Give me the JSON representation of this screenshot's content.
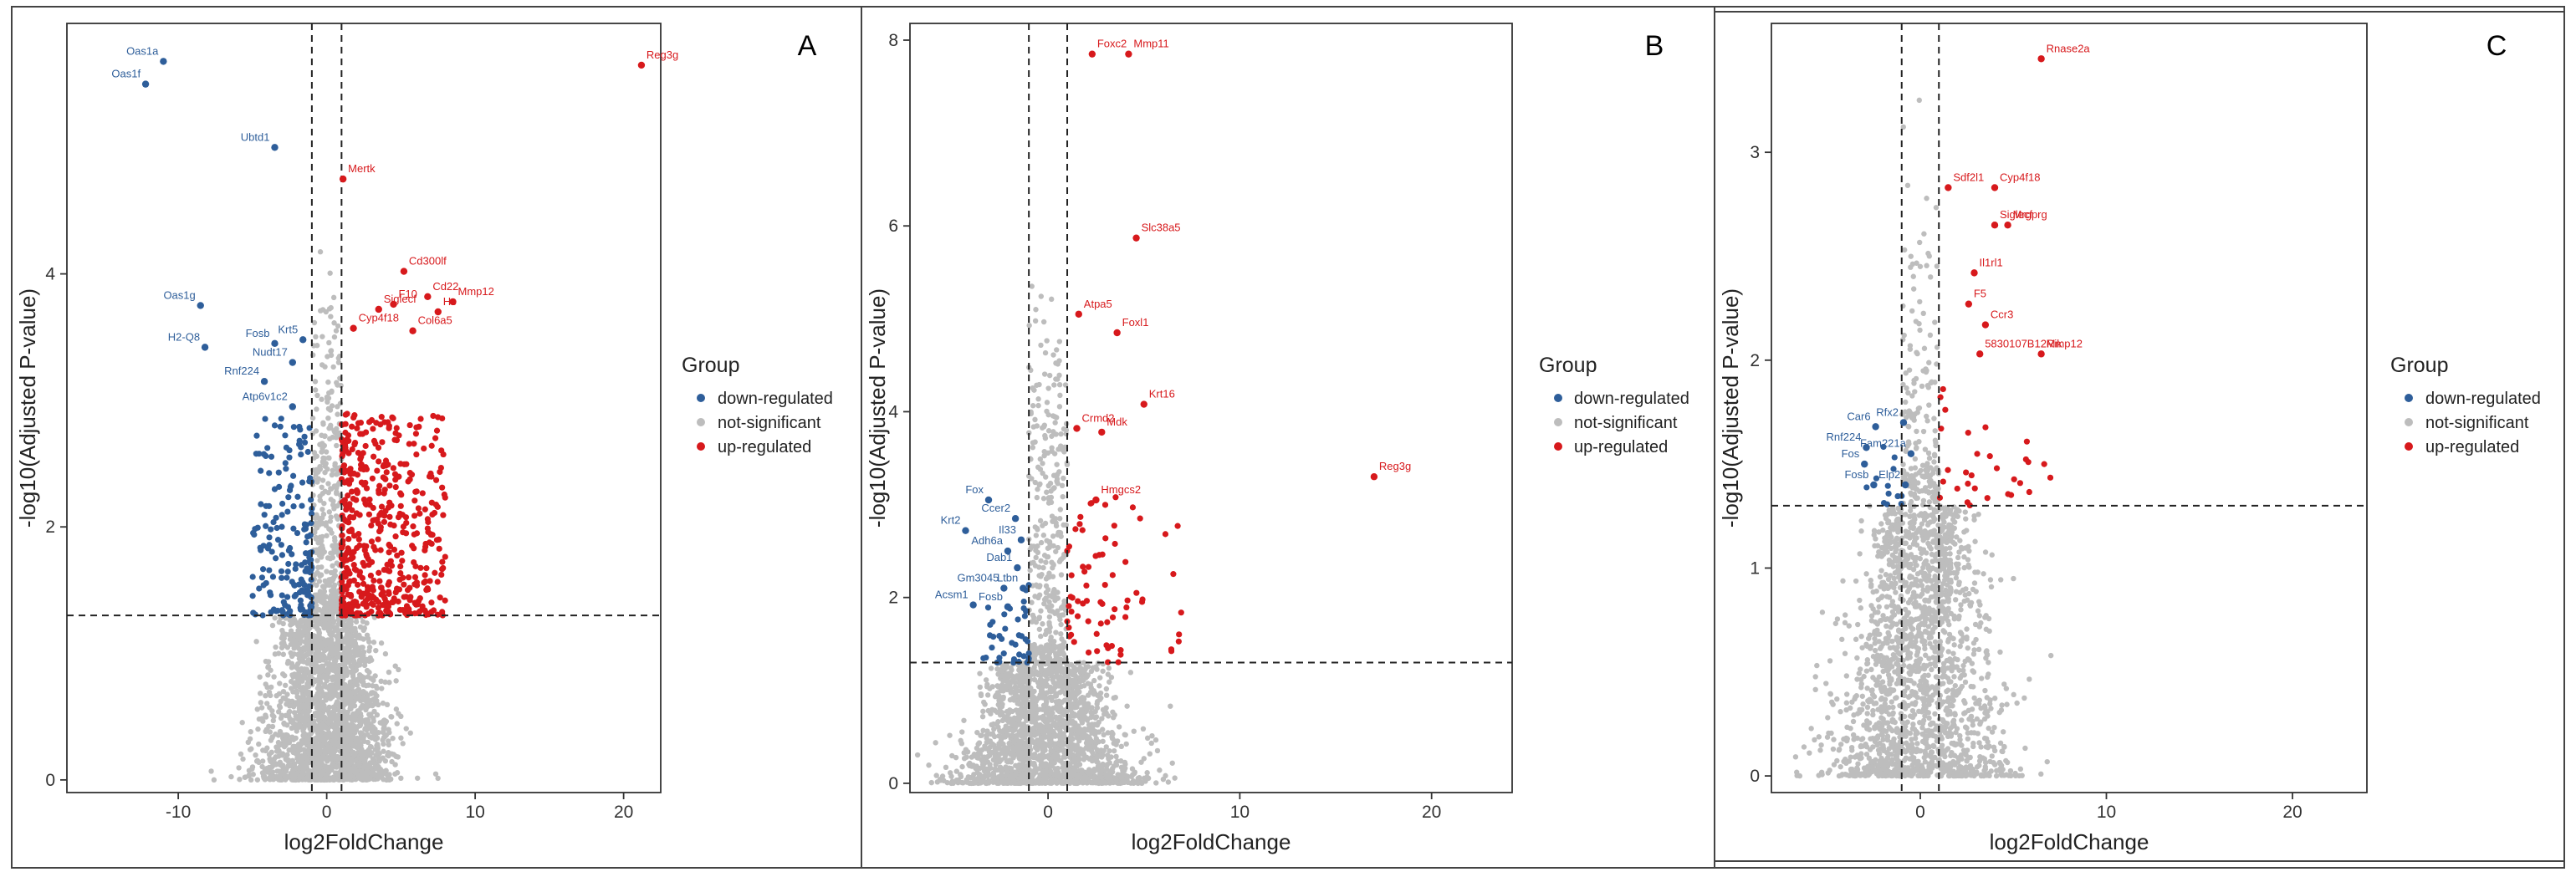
{
  "chart_data": [
    {
      "type": "scatter",
      "panel_label": "A",
      "xlabel": "log2FoldChange",
      "ylabel": "-log10(Adjusted P-value)",
      "xlim": [
        -17.5,
        22.5
      ],
      "ylim": [
        -0.1,
        5.98
      ],
      "xticks": [
        -10,
        0,
        10,
        20
      ],
      "yticks": [
        0,
        2,
        4
      ],
      "fc_cutoff": 1,
      "p_cutoff": 1.3,
      "legend": {
        "title": "Group",
        "entries": [
          "down-regulated",
          "not-significant",
          "up-regulated"
        ],
        "position": "right"
      },
      "labeled_points": [
        {
          "label": "Oas1a",
          "x": -11,
          "y": 5.68,
          "group": "down"
        },
        {
          "label": "Oas1f",
          "x": -12.2,
          "y": 5.5,
          "group": "down"
        },
        {
          "label": "Ubtd1",
          "x": -3.5,
          "y": 5.0,
          "group": "down"
        },
        {
          "label": "Oas1g",
          "x": -8.5,
          "y": 3.75,
          "group": "down"
        },
        {
          "label": "H2-Q8",
          "x": -8.2,
          "y": 3.42,
          "group": "down"
        },
        {
          "label": "Fosb",
          "x": -3.5,
          "y": 3.45,
          "group": "down"
        },
        {
          "label": "Krt5",
          "x": -1.6,
          "y": 3.48,
          "group": "down"
        },
        {
          "label": "Nudt17",
          "x": -2.3,
          "y": 3.3,
          "group": "down"
        },
        {
          "label": "Rnf224",
          "x": -4.2,
          "y": 3.15,
          "group": "down"
        },
        {
          "label": "Atp6v1c2",
          "x": -2.3,
          "y": 2.95,
          "group": "down"
        },
        {
          "label": "Reg3g",
          "x": 21.2,
          "y": 5.65,
          "group": "up"
        },
        {
          "label": "Mertk",
          "x": 1.1,
          "y": 4.75,
          "group": "up"
        },
        {
          "label": "Cd300lf",
          "x": 5.2,
          "y": 4.02,
          "group": "up"
        },
        {
          "label": "Cd22",
          "x": 6.8,
          "y": 3.82,
          "group": "up"
        },
        {
          "label": "F10",
          "x": 4.5,
          "y": 3.76,
          "group": "up"
        },
        {
          "label": "Mmp12",
          "x": 8.5,
          "y": 3.78,
          "group": "up"
        },
        {
          "label": "Siglecf",
          "x": 3.5,
          "y": 3.72,
          "group": "up"
        },
        {
          "label": "Hc",
          "x": 7.5,
          "y": 3.7,
          "group": "up"
        },
        {
          "label": "Cyp4f18",
          "x": 1.8,
          "y": 3.57,
          "group": "up"
        },
        {
          "label": "Col6a5",
          "x": 5.8,
          "y": 3.55,
          "group": "up"
        }
      ]
    },
    {
      "type": "scatter",
      "panel_label": "B",
      "xlabel": "log2FoldChange",
      "ylabel": "-log10(Adjusted P-value)",
      "xlim": [
        -7.2,
        24.2
      ],
      "ylim": [
        -0.1,
        8.18
      ],
      "xticks": [
        0,
        10,
        20
      ],
      "yticks": [
        0,
        2,
        4,
        6,
        8
      ],
      "fc_cutoff": 1,
      "p_cutoff": 1.3,
      "legend": {
        "title": "Group",
        "entries": [
          "down-regulated",
          "not-significant",
          "up-regulated"
        ],
        "position": "right"
      },
      "labeled_points": [
        {
          "label": "Fox",
          "x": -3.1,
          "y": 3.05,
          "group": "down"
        },
        {
          "label": "Ccer2",
          "x": -1.7,
          "y": 2.85,
          "group": "down"
        },
        {
          "label": "Krt2",
          "x": -4.3,
          "y": 2.72,
          "group": "down"
        },
        {
          "label": "Il33",
          "x": -1.4,
          "y": 2.62,
          "group": "down"
        },
        {
          "label": "Adh6a",
          "x": -2.1,
          "y": 2.5,
          "group": "down"
        },
        {
          "label": "Dab1",
          "x": -1.6,
          "y": 2.32,
          "group": "down"
        },
        {
          "label": "Gm3045",
          "x": -2.3,
          "y": 2.1,
          "group": "down"
        },
        {
          "label": "Ltbn",
          "x": -1.3,
          "y": 2.1,
          "group": "down"
        },
        {
          "label": "Acsm1",
          "x": -3.9,
          "y": 1.92,
          "group": "down"
        },
        {
          "label": "Fosb",
          "x": -2.1,
          "y": 1.9,
          "group": "down"
        },
        {
          "label": "Foxc2",
          "x": 2.3,
          "y": 7.85,
          "group": "up"
        },
        {
          "label": "Mmp11",
          "x": 4.2,
          "y": 7.85,
          "group": "up"
        },
        {
          "label": "Slc38a5",
          "x": 4.6,
          "y": 5.87,
          "group": "up"
        },
        {
          "label": "Atpa5",
          "x": 1.6,
          "y": 5.05,
          "group": "up"
        },
        {
          "label": "Foxl1",
          "x": 3.6,
          "y": 4.85,
          "group": "up"
        },
        {
          "label": "Krt16",
          "x": 5.0,
          "y": 4.08,
          "group": "up"
        },
        {
          "label": "Crmd2",
          "x": 1.5,
          "y": 3.82,
          "group": "up"
        },
        {
          "label": "Mdk",
          "x": 2.8,
          "y": 3.78,
          "group": "up"
        },
        {
          "label": "Reg3g",
          "x": 17.0,
          "y": 3.3,
          "group": "up"
        },
        {
          "label": "Hmgcs2",
          "x": 2.5,
          "y": 3.05,
          "group": "up"
        }
      ]
    },
    {
      "type": "scatter",
      "panel_label": "C",
      "xlabel": "log2FoldChange",
      "ylabel": "-log10(Adjusted P-value)",
      "xlim": [
        -8,
        24
      ],
      "ylim": [
        -0.08,
        3.62
      ],
      "xticks": [
        0,
        10,
        20
      ],
      "yticks": [
        0,
        1,
        2,
        3
      ],
      "fc_cutoff": 1,
      "p_cutoff": 1.3,
      "legend": {
        "title": "Group",
        "entries": [
          "down-regulated",
          "not-significant",
          "up-regulated"
        ],
        "position": "right"
      },
      "labeled_points": [
        {
          "label": "Car6",
          "x": -2.4,
          "y": 1.68,
          "group": "down"
        },
        {
          "label": "Rfx2",
          "x": -0.9,
          "y": 1.7,
          "group": "down"
        },
        {
          "label": "Rnf224",
          "x": -2.9,
          "y": 1.58,
          "group": "down"
        },
        {
          "label": "Fam221a",
          "x": -0.5,
          "y": 1.55,
          "group": "down"
        },
        {
          "label": "Fos",
          "x": -3.0,
          "y": 1.5,
          "group": "down"
        },
        {
          "label": "Fosb",
          "x": -2.5,
          "y": 1.4,
          "group": "down"
        },
        {
          "label": "Elp2",
          "x": -0.8,
          "y": 1.4,
          "group": "down"
        },
        {
          "label": "Rnase2a",
          "x": 6.5,
          "y": 3.45,
          "group": "up"
        },
        {
          "label": "Sdf2l1",
          "x": 1.5,
          "y": 2.83,
          "group": "up"
        },
        {
          "label": "Cyp4f18",
          "x": 4.0,
          "y": 2.83,
          "group": "up"
        },
        {
          "label": "Siglecf",
          "x": 4.0,
          "y": 2.65,
          "group": "up"
        },
        {
          "label": "Mrgprg",
          "x": 4.7,
          "y": 2.65,
          "group": "up"
        },
        {
          "label": "Il1rl1",
          "x": 2.9,
          "y": 2.42,
          "group": "up"
        },
        {
          "label": "F5",
          "x": 2.6,
          "y": 2.27,
          "group": "up"
        },
        {
          "label": "Ccr3",
          "x": 3.5,
          "y": 2.17,
          "group": "up"
        },
        {
          "label": "5830107B12Rik",
          "x": 3.2,
          "y": 2.03,
          "group": "up"
        },
        {
          "label": "Mmp12",
          "x": 6.5,
          "y": 2.03,
          "group": "up"
        }
      ]
    }
  ],
  "colors": {
    "down": "#2e5e9a",
    "ns": "#bdbdbd",
    "up": "#d7191c",
    "frame": "#444444"
  }
}
